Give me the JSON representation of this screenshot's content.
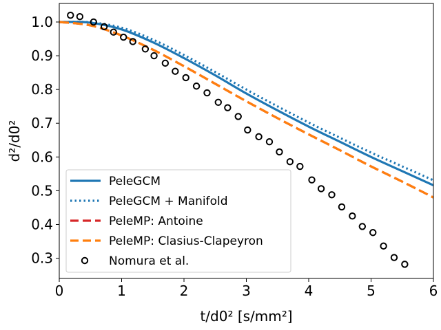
{
  "chart_data": {
    "type": "line",
    "xlabel": "t/d0² [s/mm²]",
    "ylabel": "d²/d0²",
    "xlim": [
      0,
      6
    ],
    "ylim": [
      0.24,
      1.055
    ],
    "xticks": [
      0,
      1,
      2,
      3,
      4,
      5,
      6
    ],
    "yticks": [
      0.3,
      0.4,
      0.5,
      0.6,
      0.7,
      0.8,
      0.9,
      1.0
    ],
    "xtick_labels": [
      "0",
      "1",
      "2",
      "3",
      "4",
      "5",
      "6"
    ],
    "ytick_labels": [
      "0.3",
      "0.4",
      "0.5",
      "0.6",
      "0.7",
      "0.8",
      "0.9",
      "1.0"
    ],
    "grid": false,
    "legend_position": "lower-left",
    "series": [
      {
        "name": "PeleGCM",
        "style": "solid",
        "color": "#1f77b4",
        "x": [
          0,
          0.5,
          1.0,
          1.5,
          2.0,
          2.5,
          3.0,
          3.5,
          4.0,
          4.5,
          5.0,
          5.5,
          6.0
        ],
        "y": [
          1.0,
          0.998,
          0.978,
          0.94,
          0.893,
          0.842,
          0.788,
          0.738,
          0.69,
          0.645,
          0.6,
          0.558,
          0.516
        ]
      },
      {
        "name": "PeleGCM + Manifold",
        "style": "dotted",
        "color": "#1f77b4",
        "x": [
          0,
          0.5,
          1.0,
          1.5,
          2.0,
          2.5,
          3.0,
          3.5,
          4.0,
          4.5,
          5.0,
          5.5,
          6.0
        ],
        "y": [
          1.0,
          0.999,
          0.983,
          0.948,
          0.902,
          0.852,
          0.8,
          0.75,
          0.702,
          0.657,
          0.613,
          0.572,
          0.531
        ]
      },
      {
        "name": "PeleMP: Antoine",
        "style": "dashed",
        "color": "#d62728",
        "x": [
          0,
          0.5,
          1.0,
          1.5,
          2.0,
          2.5,
          3.0,
          3.5,
          4.0,
          4.5,
          5.0,
          5.5,
          6.0
        ],
        "y": [
          1.0,
          0.99,
          0.96,
          0.918,
          0.869,
          0.817,
          0.765,
          0.715,
          0.667,
          0.62,
          0.572,
          0.527,
          0.48
        ]
      },
      {
        "name": "PeleMP: Clasius-Clapeyron",
        "style": "dashed",
        "color": "#ff7f0e",
        "x": [
          0,
          0.5,
          1.0,
          1.5,
          2.0,
          2.5,
          3.0,
          3.5,
          4.0,
          4.5,
          5.0,
          5.5,
          6.0
        ],
        "y": [
          1.0,
          0.99,
          0.96,
          0.918,
          0.869,
          0.817,
          0.765,
          0.715,
          0.667,
          0.62,
          0.572,
          0.527,
          0.48
        ]
      },
      {
        "name": "Nomura et al.",
        "style": "markers",
        "color": "#000000",
        "x": [
          0.18,
          0.33,
          0.55,
          0.72,
          0.87,
          1.03,
          1.18,
          1.38,
          1.52,
          1.7,
          1.86,
          2.03,
          2.2,
          2.37,
          2.55,
          2.7,
          2.87,
          3.02,
          3.2,
          3.37,
          3.53,
          3.7,
          3.86,
          4.05,
          4.2,
          4.37,
          4.53,
          4.7,
          4.86,
          5.03,
          5.2,
          5.37,
          5.54
        ],
        "y": [
          1.02,
          1.016,
          1.0,
          0.986,
          0.97,
          0.955,
          0.942,
          0.92,
          0.9,
          0.878,
          0.854,
          0.835,
          0.81,
          0.79,
          0.762,
          0.746,
          0.72,
          0.68,
          0.66,
          0.645,
          0.615,
          0.586,
          0.572,
          0.532,
          0.506,
          0.488,
          0.452,
          0.425,
          0.394,
          0.376,
          0.336,
          0.302,
          0.282
        ]
      }
    ]
  }
}
